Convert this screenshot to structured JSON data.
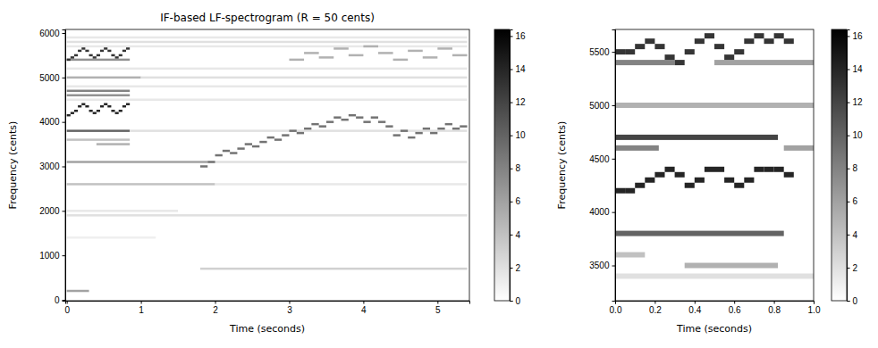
{
  "chart_data": [
    {
      "type": "heatmap",
      "title": "IF-based LF-spectrogram (R = 50 cents)",
      "x_label": "Time (seconds)",
      "y_label": "Frequency (cents)",
      "xlim": [
        -0.02,
        5.43
      ],
      "ylim": [
        -20,
        6080
      ],
      "xticks": [
        0,
        1,
        2,
        3,
        4,
        5
      ],
      "yticks": [
        0,
        1000,
        2000,
        3000,
        4000,
        5000,
        6000
      ],
      "resolution": 50,
      "colorbar": {
        "range": [
          0,
          16.4
        ],
        "ticks": [
          0,
          2,
          4,
          6,
          8,
          10,
          12,
          14,
          16
        ]
      },
      "cells": [
        [
          0,
          0.85,
          3800,
          10
        ],
        [
          0.85,
          5.4,
          3800,
          2
        ],
        [
          0,
          0.85,
          4700,
          8
        ],
        [
          0,
          0.85,
          4600,
          7
        ],
        [
          0,
          1.0,
          5000,
          5
        ],
        [
          1.0,
          5.4,
          5000,
          2
        ],
        [
          0,
          1.9,
          3100,
          6
        ],
        [
          1.9,
          5.4,
          3100,
          2
        ],
        [
          0,
          2.0,
          2600,
          4
        ],
        [
          2.0,
          5.4,
          2600,
          1.5
        ],
        [
          0,
          5.4,
          1900,
          2
        ],
        [
          0,
          1.5,
          2000,
          1.5
        ],
        [
          1.8,
          5.4,
          700,
          3
        ],
        [
          0,
          0.3,
          200,
          6
        ],
        [
          0,
          1.2,
          1400,
          1
        ],
        [
          0,
          0.85,
          3600,
          4
        ],
        [
          0.4,
          0.85,
          3500,
          5
        ],
        [
          0,
          5.4,
          4500,
          1.5
        ],
        [
          0,
          5.4,
          4800,
          1.5
        ],
        [
          0,
          5.4,
          5800,
          2
        ],
        [
          0,
          5.4,
          5900,
          1.5
        ],
        [
          0,
          5.4,
          5200,
          1.5
        ],
        [
          0,
          5.4,
          5700,
          1.5
        ],
        [
          0,
          0.85,
          5400,
          7
        ],
        [
          0.0,
          0.05,
          4150,
          14
        ],
        [
          0.05,
          0.1,
          4200,
          14
        ],
        [
          0.1,
          0.15,
          4250,
          14
        ],
        [
          0.15,
          0.2,
          4350,
          14
        ],
        [
          0.2,
          0.25,
          4400,
          14
        ],
        [
          0.25,
          0.3,
          4350,
          14
        ],
        [
          0.3,
          0.35,
          4250,
          14
        ],
        [
          0.35,
          0.4,
          4200,
          14
        ],
        [
          0.4,
          0.45,
          4250,
          14
        ],
        [
          0.45,
          0.5,
          4350,
          14
        ],
        [
          0.5,
          0.55,
          4400,
          14
        ],
        [
          0.55,
          0.6,
          4350,
          14
        ],
        [
          0.6,
          0.65,
          4250,
          14
        ],
        [
          0.65,
          0.7,
          4200,
          14
        ],
        [
          0.7,
          0.75,
          4250,
          14
        ],
        [
          0.75,
          0.8,
          4350,
          14
        ],
        [
          0.8,
          0.85,
          4400,
          14
        ],
        [
          0.0,
          0.05,
          5400,
          13
        ],
        [
          0.05,
          0.1,
          5450,
          13
        ],
        [
          0.1,
          0.15,
          5500,
          13
        ],
        [
          0.15,
          0.2,
          5600,
          13
        ],
        [
          0.2,
          0.25,
          5650,
          13
        ],
        [
          0.25,
          0.3,
          5600,
          13
        ],
        [
          0.3,
          0.35,
          5500,
          13
        ],
        [
          0.35,
          0.4,
          5450,
          13
        ],
        [
          0.4,
          0.45,
          5500,
          13
        ],
        [
          0.45,
          0.5,
          5600,
          13
        ],
        [
          0.5,
          0.55,
          5650,
          13
        ],
        [
          0.55,
          0.6,
          5600,
          13
        ],
        [
          0.6,
          0.65,
          5500,
          13
        ],
        [
          0.65,
          0.7,
          5450,
          13
        ],
        [
          0.7,
          0.75,
          5500,
          13
        ],
        [
          0.75,
          0.8,
          5600,
          13
        ],
        [
          0.8,
          0.85,
          5650,
          13
        ],
        [
          1.8,
          1.9,
          3000,
          9
        ],
        [
          1.9,
          2.0,
          3100,
          9
        ],
        [
          2.0,
          2.1,
          3250,
          9
        ],
        [
          2.1,
          2.2,
          3350,
          9
        ],
        [
          2.2,
          2.3,
          3300,
          9
        ],
        [
          2.3,
          2.4,
          3400,
          9
        ],
        [
          2.4,
          2.5,
          3500,
          9
        ],
        [
          2.5,
          2.6,
          3450,
          9
        ],
        [
          2.6,
          2.7,
          3550,
          9
        ],
        [
          2.7,
          2.8,
          3650,
          9
        ],
        [
          2.8,
          2.9,
          3600,
          9
        ],
        [
          2.9,
          3.0,
          3700,
          9
        ],
        [
          3.0,
          3.1,
          3800,
          9
        ],
        [
          3.1,
          3.2,
          3750,
          9
        ],
        [
          3.2,
          3.3,
          3850,
          9
        ],
        [
          3.3,
          3.4,
          3950,
          9
        ],
        [
          3.4,
          3.5,
          3900,
          9
        ],
        [
          3.5,
          3.6,
          4000,
          9
        ],
        [
          3.6,
          3.7,
          4100,
          9
        ],
        [
          3.7,
          3.8,
          4050,
          9
        ],
        [
          3.8,
          3.9,
          4150,
          9
        ],
        [
          3.9,
          4.0,
          4100,
          9
        ],
        [
          4.0,
          4.1,
          4000,
          9
        ],
        [
          4.1,
          4.2,
          4100,
          9
        ],
        [
          4.2,
          4.3,
          4000,
          9
        ],
        [
          4.3,
          4.4,
          3900,
          9
        ],
        [
          4.4,
          4.5,
          3700,
          9
        ],
        [
          4.5,
          4.6,
          3800,
          9
        ],
        [
          4.6,
          4.7,
          3650,
          9
        ],
        [
          4.7,
          4.8,
          3750,
          9
        ],
        [
          4.8,
          4.9,
          3850,
          9
        ],
        [
          4.9,
          5.0,
          3750,
          9
        ],
        [
          5.0,
          5.1,
          3850,
          9
        ],
        [
          5.1,
          5.2,
          3950,
          9
        ],
        [
          5.2,
          5.3,
          3850,
          9
        ],
        [
          5.3,
          5.4,
          3900,
          9
        ],
        [
          3.0,
          3.2,
          5400,
          5
        ],
        [
          3.2,
          3.4,
          5550,
          5
        ],
        [
          3.4,
          3.6,
          5450,
          5
        ],
        [
          3.6,
          3.8,
          5650,
          5
        ],
        [
          3.8,
          4.0,
          5500,
          5
        ],
        [
          4.0,
          4.2,
          5700,
          5
        ],
        [
          4.2,
          4.4,
          5550,
          5
        ],
        [
          4.4,
          4.6,
          5400,
          5
        ],
        [
          4.6,
          4.8,
          5600,
          5
        ],
        [
          4.8,
          5.0,
          5450,
          5
        ],
        [
          5.0,
          5.2,
          5650,
          5
        ],
        [
          5.2,
          5.4,
          5500,
          5
        ]
      ]
    },
    {
      "type": "heatmap",
      "x_label": "Time (seconds)",
      "y_label": "Frequency (cents)",
      "xlim": [
        0,
        1
      ],
      "ylim": [
        3170,
        5710
      ],
      "xticks": [
        {
          "value": 0,
          "label": "0.0"
        },
        {
          "value": 0.2,
          "label": "0.2"
        },
        {
          "value": 0.4,
          "label": "0.4"
        },
        {
          "value": 0.6,
          "label": "0.6"
        },
        {
          "value": 0.8,
          "label": "0.8"
        },
        {
          "value": 1,
          "label": "1.0"
        }
      ],
      "yticks": [
        3500,
        4000,
        4500,
        5000,
        5500
      ],
      "resolution": 50,
      "colorbar": {
        "range": [
          0,
          16.4
        ],
        "ticks": [
          0,
          2,
          4,
          6,
          8,
          10,
          12,
          14,
          16
        ]
      },
      "cells": [
        [
          0,
          0.85,
          3800,
          10
        ],
        [
          0,
          0.82,
          4700,
          12
        ],
        [
          0,
          0.22,
          4600,
          8
        ],
        [
          0.85,
          1,
          4600,
          6
        ],
        [
          0,
          1,
          5000,
          5
        ],
        [
          0.35,
          0.82,
          3500,
          5
        ],
        [
          0,
          0.15,
          3600,
          4
        ],
        [
          0,
          0.3,
          5400,
          8
        ],
        [
          0.5,
          1,
          5400,
          6
        ],
        [
          0,
          1,
          3400,
          2
        ],
        [
          0.0,
          0.05,
          4200,
          14
        ],
        [
          0.05,
          0.1,
          4200,
          14
        ],
        [
          0.1,
          0.15,
          4250,
          14
        ],
        [
          0.15,
          0.2,
          4300,
          14
        ],
        [
          0.2,
          0.25,
          4350,
          14
        ],
        [
          0.25,
          0.3,
          4400,
          14
        ],
        [
          0.3,
          0.35,
          4350,
          14
        ],
        [
          0.35,
          0.4,
          4250,
          14
        ],
        [
          0.4,
          0.45,
          4300,
          14
        ],
        [
          0.45,
          0.5,
          4400,
          14
        ],
        [
          0.5,
          0.55,
          4400,
          14
        ],
        [
          0.55,
          0.6,
          4300,
          14
        ],
        [
          0.6,
          0.65,
          4250,
          14
        ],
        [
          0.65,
          0.7,
          4300,
          14
        ],
        [
          0.7,
          0.75,
          4400,
          14
        ],
        [
          0.75,
          0.8,
          4400,
          14
        ],
        [
          0.8,
          0.85,
          4400,
          14
        ],
        [
          0.85,
          0.9,
          4350,
          14
        ],
        [
          0.0,
          0.05,
          5500,
          13
        ],
        [
          0.05,
          0.1,
          5500,
          13
        ],
        [
          0.1,
          0.15,
          5550,
          13
        ],
        [
          0.15,
          0.2,
          5600,
          13
        ],
        [
          0.2,
          0.25,
          5550,
          13
        ],
        [
          0.25,
          0.3,
          5450,
          13
        ],
        [
          0.3,
          0.35,
          5400,
          13
        ],
        [
          0.35,
          0.4,
          5500,
          13
        ],
        [
          0.4,
          0.45,
          5600,
          13
        ],
        [
          0.45,
          0.5,
          5650,
          13
        ],
        [
          0.5,
          0.55,
          5550,
          13
        ],
        [
          0.55,
          0.6,
          5450,
          13
        ],
        [
          0.6,
          0.65,
          5500,
          13
        ],
        [
          0.65,
          0.7,
          5600,
          13
        ],
        [
          0.7,
          0.75,
          5650,
          13
        ],
        [
          0.75,
          0.8,
          5600,
          13
        ],
        [
          0.8,
          0.85,
          5650,
          13
        ],
        [
          0.85,
          0.9,
          5600,
          13
        ]
      ]
    }
  ]
}
